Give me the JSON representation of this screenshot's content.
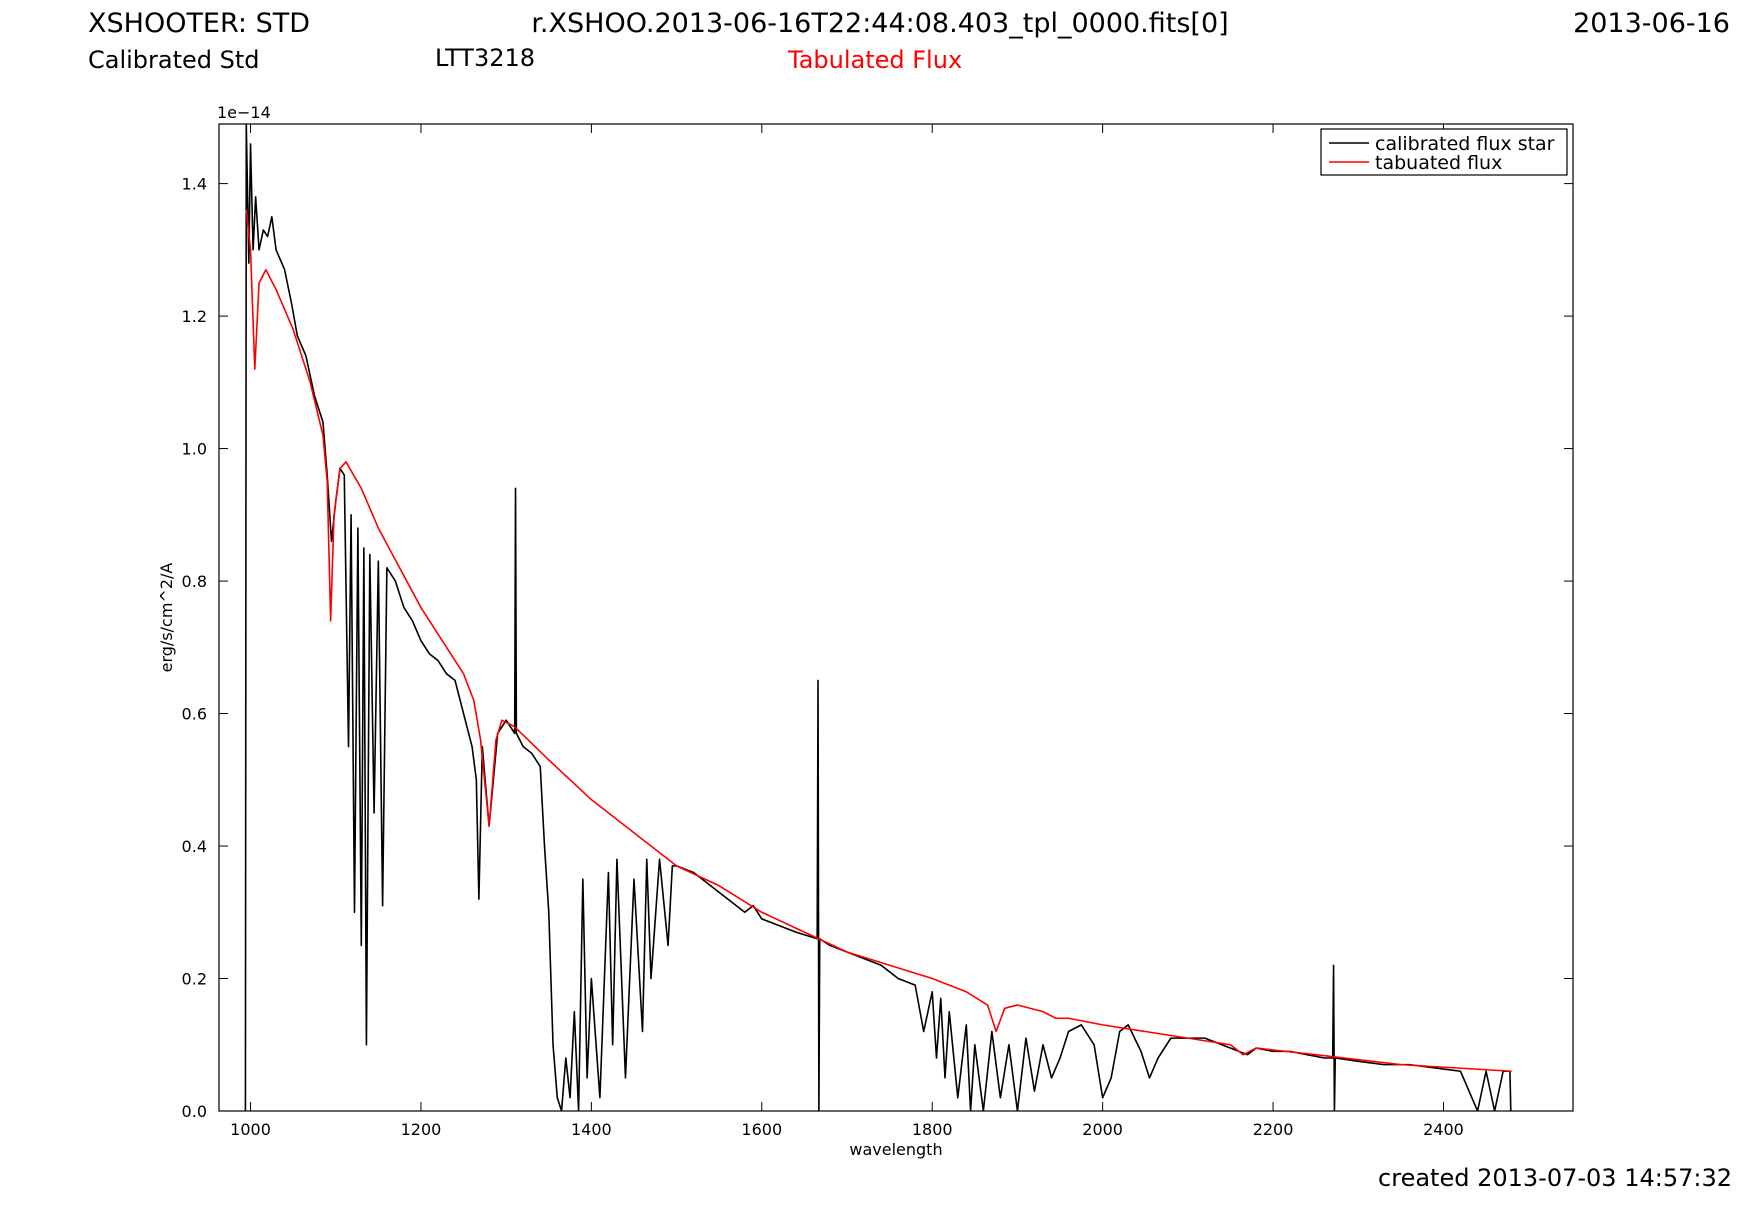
{
  "chart_data": {
    "type": "line",
    "title": "XSHOOTER: STD",
    "filename": "r.XSHOO.2013-06-16T22:44:08.403_tpl_0000.fits[0]",
    "date": "2013-06-16",
    "subtitle": "Calibrated Std",
    "object": "LTT3218",
    "annotation": "Tabulated Flux",
    "annotation_color": "#ff0000",
    "created": "created 2013-07-03 14:57:32",
    "xlabel": "wavelength",
    "ylabel": "erg/s/cm^2/A",
    "y_offset_label": "1e−14",
    "xlim": [
      963,
      2552
    ],
    "ylim": [
      0,
      1.49
    ],
    "xticks": [
      1000,
      1200,
      1400,
      1600,
      1800,
      2000,
      2200,
      2400
    ],
    "yticks": [
      {
        "value": 0,
        "label": "0.0"
      },
      0.2,
      0.4,
      0.6,
      0.8,
      {
        "value": 1,
        "label": "1.0"
      },
      1.2,
      1.4
    ],
    "grid": false,
    "legend": "upper right",
    "series": [
      {
        "name": "calibrated flux star",
        "color": "#000000",
        "x": [
          994,
          995,
          998,
          1000,
          1003,
          1006,
          1010,
          1015,
          1020,
          1025,
          1030,
          1040,
          1048,
          1055,
          1065,
          1075,
          1085,
          1090,
          1095,
          1100,
          1105,
          1110,
          1115,
          1118,
          1122,
          1126,
          1130,
          1133,
          1136,
          1140,
          1145,
          1150,
          1155,
          1160,
          1170,
          1180,
          1190,
          1200,
          1210,
          1220,
          1230,
          1240,
          1250,
          1260,
          1265,
          1268,
          1272,
          1280,
          1290,
          1300,
          1310,
          1311,
          1312,
          1320,
          1330,
          1340,
          1345,
          1350,
          1355,
          1360,
          1365,
          1370,
          1375,
          1380,
          1385,
          1390,
          1395,
          1400,
          1410,
          1420,
          1425,
          1430,
          1440,
          1450,
          1460,
          1465,
          1470,
          1480,
          1490,
          1495,
          1500,
          1520,
          1540,
          1560,
          1580,
          1590,
          1600,
          1620,
          1640,
          1665,
          1666,
          1667,
          1668,
          1680,
          1700,
          1720,
          1740,
          1760,
          1780,
          1790,
          1800,
          1805,
          1810,
          1815,
          1820,
          1830,
          1840,
          1845,
          1850,
          1860,
          1870,
          1880,
          1890,
          1900,
          1910,
          1920,
          1930,
          1940,
          1950,
          1960,
          1975,
          1990,
          2000,
          2010,
          2020,
          2030,
          2045,
          2055,
          2065,
          2080,
          2100,
          2120,
          2140,
          2160,
          2170,
          2180,
          2200,
          2220,
          2240,
          2260,
          2270,
          2271,
          2272,
          2273,
          2300,
          2330,
          2360,
          2390,
          2420,
          2440,
          2450,
          2460,
          2470,
          2478,
          2479
        ],
        "values": [
          0,
          1.49,
          1.28,
          1.46,
          1.3,
          1.38,
          1.3,
          1.33,
          1.32,
          1.35,
          1.3,
          1.27,
          1.22,
          1.17,
          1.14,
          1.08,
          1.04,
          0.96,
          0.86,
          0.92,
          0.97,
          0.96,
          0.55,
          0.9,
          0.3,
          0.88,
          0.25,
          0.85,
          0.1,
          0.84,
          0.45,
          0.83,
          0.31,
          0.82,
          0.8,
          0.76,
          0.74,
          0.71,
          0.69,
          0.68,
          0.66,
          0.65,
          0.6,
          0.55,
          0.5,
          0.32,
          0.55,
          0.43,
          0.57,
          0.59,
          0.57,
          0.94,
          0.57,
          0.55,
          0.54,
          0.52,
          0.4,
          0.3,
          0.1,
          0.02,
          0,
          0.08,
          0.02,
          0.15,
          0,
          0.35,
          0.05,
          0.2,
          0.02,
          0.36,
          0.1,
          0.38,
          0.05,
          0.35,
          0.12,
          0.38,
          0.2,
          0.38,
          0.25,
          0.37,
          0.37,
          0.36,
          0.34,
          0.32,
          0.3,
          0.31,
          0.29,
          0.28,
          0.27,
          0.26,
          0.65,
          0,
          0.26,
          0.25,
          0.24,
          0.23,
          0.22,
          0.2,
          0.19,
          0.12,
          0.18,
          0.08,
          0.17,
          0.05,
          0.15,
          0.02,
          0.13,
          0,
          0.1,
          0,
          0.12,
          0.02,
          0.1,
          0,
          0.11,
          0.03,
          0.1,
          0.05,
          0.08,
          0.12,
          0.13,
          0.1,
          0.02,
          0.05,
          0.12,
          0.13,
          0.09,
          0.05,
          0.08,
          0.11,
          0.11,
          0.11,
          0.1,
          0.09,
          0.085,
          0.095,
          0.09,
          0.09,
          0.085,
          0.08,
          0.08,
          0.22,
          0,
          0.08,
          0.075,
          0.07,
          0.07,
          0.065,
          0.06,
          0,
          0.06,
          0,
          0.06,
          0.06,
          0
        ]
      },
      {
        "name": "tabuated flux",
        "color": "#ff0000",
        "x": [
          995,
          1000,
          1005,
          1010,
          1018,
          1030,
          1050,
          1070,
          1085,
          1090,
          1094,
          1098,
          1105,
          1112,
          1130,
          1150,
          1175,
          1200,
          1225,
          1250,
          1262,
          1270,
          1280,
          1288,
          1295,
          1310,
          1350,
          1400,
          1450,
          1500,
          1550,
          1600,
          1650,
          1700,
          1750,
          1800,
          1840,
          1865,
          1875,
          1885,
          1900,
          1930,
          1945,
          1960,
          2000,
          2050,
          2100,
          2150,
          2165,
          2180,
          2250,
          2350,
          2480
        ],
        "values": [
          1.36,
          1.3,
          1.12,
          1.25,
          1.27,
          1.24,
          1.18,
          1.1,
          1.02,
          0.95,
          0.74,
          0.9,
          0.97,
          0.98,
          0.94,
          0.88,
          0.82,
          0.76,
          0.71,
          0.66,
          0.62,
          0.56,
          0.43,
          0.56,
          0.59,
          0.58,
          0.53,
          0.47,
          0.42,
          0.37,
          0.34,
          0.3,
          0.27,
          0.24,
          0.22,
          0.2,
          0.18,
          0.16,
          0.12,
          0.155,
          0.16,
          0.15,
          0.14,
          0.14,
          0.13,
          0.12,
          0.11,
          0.1,
          0.085,
          0.095,
          0.085,
          0.07,
          0.06
        ]
      }
    ]
  }
}
